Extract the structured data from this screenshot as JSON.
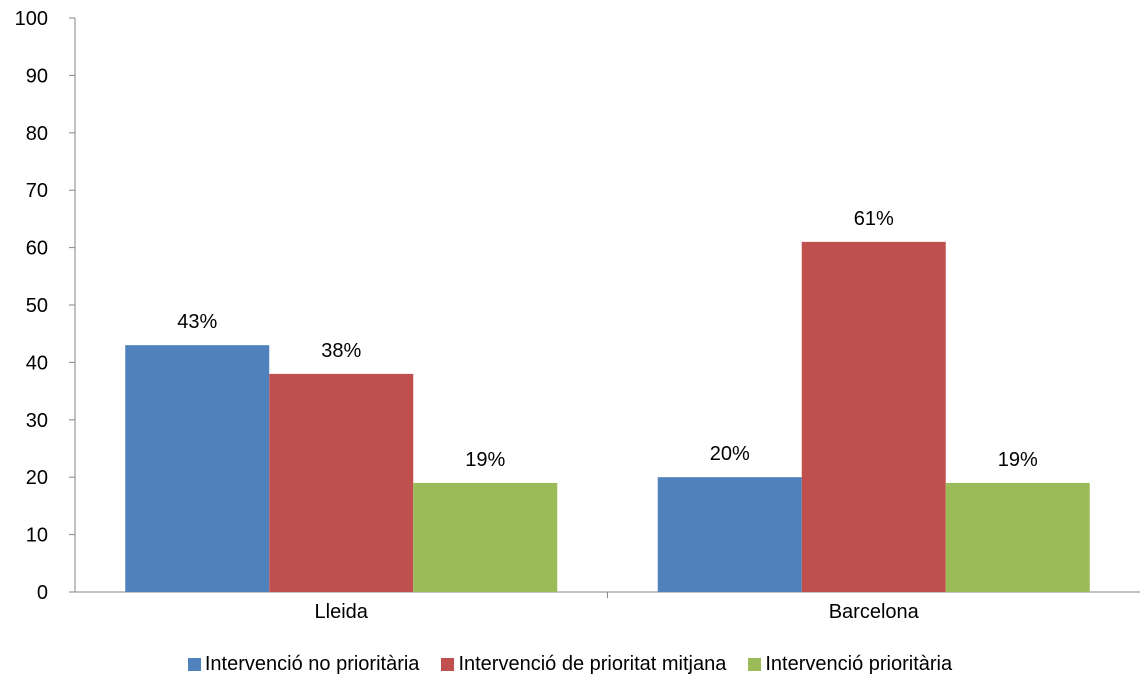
{
  "chart_data": {
    "type": "bar",
    "title": "",
    "xlabel": "",
    "ylabel": "",
    "categories": [
      "Lleida",
      "Barcelona"
    ],
    "series": [
      {
        "name": "Intervenció no prioritària",
        "values": [
          43,
          20
        ],
        "labels": [
          "43%",
          "20%"
        ],
        "color": "#4f81bd"
      },
      {
        "name": "Intervenció de prioritat mitjana",
        "values": [
          38,
          61
        ],
        "labels": [
          "38%",
          "61%"
        ],
        "color": "#c0504d"
      },
      {
        "name": "Intervenció prioritària",
        "values": [
          19,
          19
        ],
        "labels": [
          "19%",
          "19%"
        ],
        "color": "#9bbb59"
      }
    ],
    "ylim": [
      0,
      100
    ],
    "yticks": [
      "0",
      "10",
      "20",
      "30",
      "40",
      "50",
      "60",
      "70",
      "80",
      "90",
      "100"
    ],
    "grid": false,
    "legend_position": "bottom"
  }
}
